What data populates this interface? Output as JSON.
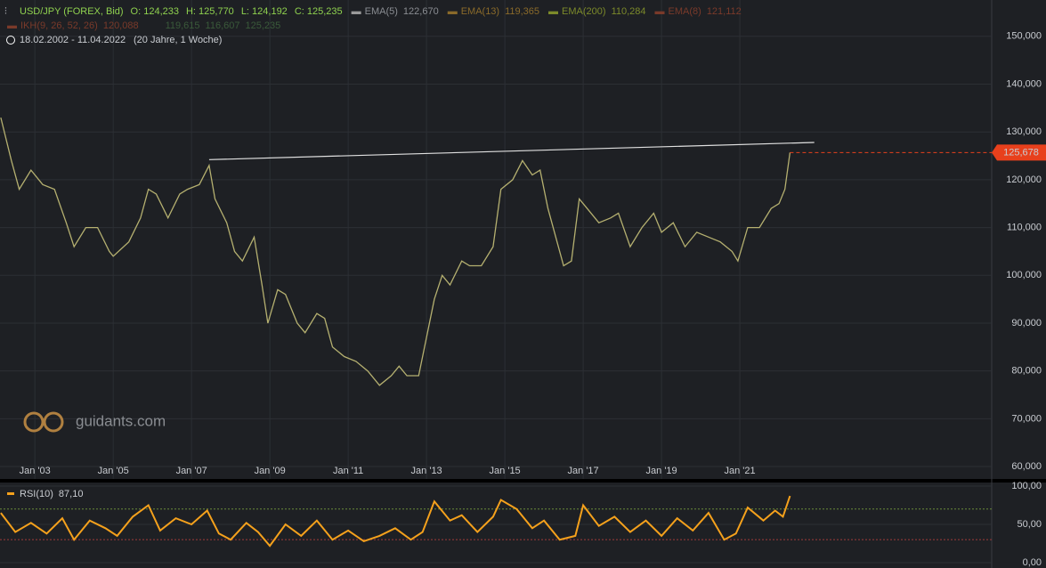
{
  "header": {
    "symbol": "USD/JPY (FOREX, Bid)",
    "ohlc": [
      "O: 124,233",
      "H: 125,770",
      "L: 124,192",
      "C: 125,235"
    ],
    "indicators": [
      {
        "name": "EMA(5)",
        "value": "122,670",
        "color": "#9a9a9a"
      },
      {
        "name": "EMA(13)",
        "value": "119,365",
        "color": "#8a6a2a"
      },
      {
        "name": "EMA(200)",
        "value": "110,284",
        "color": "#7c8a2a"
      },
      {
        "name": "EMA(8)",
        "value": "121,112",
        "color": "#7a3a2a"
      }
    ],
    "ikh": {
      "name": "IKH(9, 26, 52, 26)",
      "values": [
        "120,088",
        "119,615",
        "116,607",
        "125,235"
      ]
    },
    "range": "18.02.2002 - 11.04.2022",
    "span": "(20 Jahre, 1 Woche)",
    "watermark": "guidants.com"
  },
  "chart_data": [
    {
      "type": "line",
      "color": "#b5b070",
      "x": [
        2002.13,
        2002.4,
        2002.6,
        2002.9,
        2003.2,
        2003.5,
        2003.8,
        2004.0,
        2004.3,
        2004.6,
        2004.9,
        2005.0,
        2005.4,
        2005.7,
        2005.9,
        2006.1,
        2006.4,
        2006.7,
        2006.9,
        2007.2,
        2007.45,
        2007.6,
        2007.9,
        2008.1,
        2008.3,
        2008.6,
        2008.8,
        2008.95,
        2009.2,
        2009.4,
        2009.7,
        2009.9,
        2010.2,
        2010.4,
        2010.6,
        2010.9,
        2011.2,
        2011.5,
        2011.8,
        2012.1,
        2012.3,
        2012.5,
        2012.8,
        2012.95,
        2013.2,
        2013.4,
        2013.6,
        2013.9,
        2014.1,
        2014.4,
        2014.7,
        2014.9,
        2015.2,
        2015.45,
        2015.7,
        2015.9,
        2016.1,
        2016.3,
        2016.5,
        2016.7,
        2016.9,
        2017.1,
        2017.4,
        2017.7,
        2017.9,
        2018.2,
        2018.5,
        2018.8,
        2019.0,
        2019.3,
        2019.6,
        2019.9,
        2020.2,
        2020.5,
        2020.8,
        2020.95,
        2021.2,
        2021.5,
        2021.8,
        2022.0,
        2022.15,
        2022.28
      ],
      "values": [
        133,
        124,
        118,
        122,
        119,
        118,
        111,
        106,
        110,
        110,
        105,
        104,
        107,
        112,
        118,
        117,
        112,
        117,
        118,
        119,
        123,
        116,
        111,
        105,
        103,
        108,
        98,
        90,
        97,
        96,
        90,
        88,
        92,
        91,
        85,
        83,
        82,
        80,
        77,
        79,
        81,
        79,
        79,
        85,
        95,
        100,
        98,
        103,
        102,
        102,
        106,
        118,
        120,
        124,
        121,
        122,
        114,
        108,
        102,
        103,
        116,
        114,
        111,
        112,
        113,
        106,
        110,
        113,
        109,
        111,
        106,
        109,
        108,
        107,
        105,
        103,
        110,
        110,
        114,
        115,
        118,
        125.7
      ],
      "xlim": [
        2002.11,
        2027.43
      ],
      "ylim": [
        57.4,
        157.6
      ],
      "xticks": [
        {
          "value": 2003,
          "label": "Jan '03"
        },
        {
          "value": 2005,
          "label": "Jan '05"
        },
        {
          "value": 2007,
          "label": "Jan '07"
        },
        {
          "value": 2009,
          "label": "Jan '09"
        },
        {
          "value": 2011,
          "label": "Jan '11"
        },
        {
          "value": 2013,
          "label": "Jan '13"
        },
        {
          "value": 2015,
          "label": "Jan '15"
        },
        {
          "value": 2017,
          "label": "Jan '17"
        },
        {
          "value": 2019,
          "label": "Jan '19"
        },
        {
          "value": 2021,
          "label": "Jan '21"
        }
      ],
      "yticks": [
        {
          "value": 60,
          "label": "60,000"
        },
        {
          "value": 70,
          "label": "70,000"
        },
        {
          "value": 80,
          "label": "80,000"
        },
        {
          "value": 90,
          "label": "90,000"
        },
        {
          "value": 100,
          "label": "100,000"
        },
        {
          "value": 110,
          "label": "110,000"
        },
        {
          "value": 120,
          "label": "120,000"
        },
        {
          "value": 130,
          "label": "130,000"
        },
        {
          "value": 140,
          "label": "140,000"
        },
        {
          "value": 150,
          "label": "150,000"
        }
      ],
      "grid": true,
      "last_price": {
        "value": 125.678,
        "label": "125,678",
        "color": "#e8401c"
      },
      "trendline": {
        "x": [
          2007.45,
          2022.9
        ],
        "y": [
          124.2,
          127.8
        ],
        "color": "#e0e0e0"
      }
    },
    {
      "type": "line",
      "name": "RSI(10)",
      "value_label": "87,10",
      "color": "#f5a11c",
      "x": [
        2002.13,
        2002.5,
        2002.9,
        2003.3,
        2003.7,
        2004.0,
        2004.4,
        2004.8,
        2005.1,
        2005.5,
        2005.9,
        2006.2,
        2006.6,
        2007.0,
        2007.4,
        2007.7,
        2008.0,
        2008.4,
        2008.7,
        2009.0,
        2009.4,
        2009.8,
        2010.2,
        2010.6,
        2011.0,
        2011.4,
        2011.8,
        2012.2,
        2012.6,
        2012.9,
        2013.2,
        2013.6,
        2013.9,
        2014.3,
        2014.7,
        2014.9,
        2015.3,
        2015.7,
        2016.0,
        2016.4,
        2016.8,
        2017.0,
        2017.4,
        2017.8,
        2018.2,
        2018.6,
        2019.0,
        2019.4,
        2019.8,
        2020.2,
        2020.6,
        2020.9,
        2021.2,
        2021.6,
        2021.9,
        2022.1,
        2022.28
      ],
      "values": [
        65,
        40,
        52,
        38,
        58,
        30,
        55,
        45,
        35,
        60,
        75,
        42,
        58,
        50,
        68,
        38,
        30,
        52,
        40,
        22,
        50,
        35,
        55,
        30,
        42,
        28,
        35,
        45,
        30,
        40,
        80,
        55,
        62,
        40,
        60,
        82,
        70,
        45,
        55,
        30,
        35,
        75,
        48,
        60,
        40,
        55,
        35,
        58,
        42,
        65,
        30,
        38,
        72,
        55,
        68,
        60,
        87.1
      ],
      "xlim": [
        2002.11,
        2027.43
      ],
      "ylim": [
        -7,
        105.8
      ],
      "yticks": [
        {
          "value": 0,
          "label": "0,00"
        },
        {
          "value": 50,
          "label": "50,00"
        },
        {
          "value": 100,
          "label": "100,00"
        }
      ],
      "levels": [
        70,
        30
      ],
      "level_colors": [
        "#6a8a3a",
        "#a03a3a"
      ]
    }
  ]
}
